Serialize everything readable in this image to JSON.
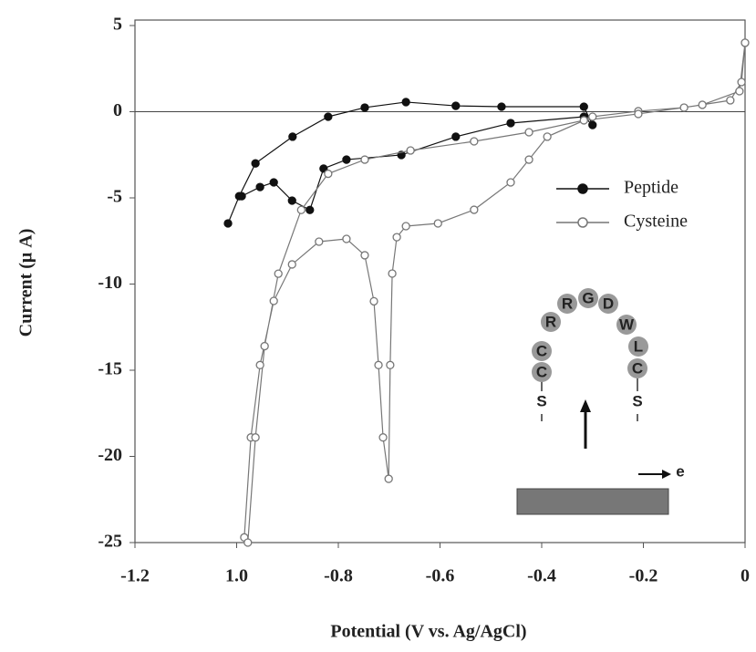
{
  "chart_data": {
    "type": "line",
    "x_label": "Potential (V vs. Ag/AgCl)",
    "y_label": "Current (μ A)",
    "xlim": [
      -1.2,
      0
    ],
    "ylim": [
      -25,
      5
    ],
    "xticks": [
      -1.2,
      {
        "value": -1.0,
        "label": "1.0"
      },
      -0.8,
      -0.6,
      -0.4,
      -0.2,
      0
    ],
    "yticks": [
      5,
      0,
      -5,
      -10,
      -15,
      -20,
      -25
    ],
    "zero_line": true,
    "legend_position": "right",
    "series": [
      {
        "name": "Peptide",
        "color": "#111111",
        "marker": "filled",
        "x": [
          -1.017,
          -0.995,
          -0.963,
          -0.89,
          -0.82,
          -0.748,
          -0.667,
          -0.569,
          -0.479,
          -0.317,
          -0.3,
          -0.317,
          -0.461,
          -0.569,
          -0.676,
          -0.784,
          -0.829,
          -0.856,
          -0.891,
          -0.927,
          -0.954,
          -0.99
        ],
        "values": [
          -6.48,
          -4.9,
          -3.0,
          -1.45,
          -0.29,
          0.24,
          0.56,
          0.34,
          0.29,
          0.29,
          -0.77,
          -0.29,
          -0.66,
          -1.45,
          -2.51,
          -2.78,
          -3.3,
          -5.7,
          -5.16,
          -4.1,
          -4.37,
          -4.9
        ]
      },
      {
        "name": "Cysteine",
        "color": "#777777",
        "marker": "open",
        "x": [
          0,
          -0.007,
          -0.029,
          -0.12,
          -0.21,
          -0.3,
          -0.389,
          -0.425,
          -0.461,
          -0.533,
          -0.604,
          -0.667,
          -0.685,
          -0.694,
          -0.698,
          -0.701,
          -0.712,
          -0.721,
          -0.73,
          -0.748,
          -0.784,
          -0.838,
          -0.891,
          -0.927,
          -0.954,
          -0.972,
          -0.985,
          -0.978,
          -0.963,
          -0.945,
          -0.918,
          -0.873,
          -0.82,
          -0.748,
          -0.658,
          -0.533,
          -0.425,
          -0.317,
          -0.21,
          -0.084,
          -0.011,
          0
        ],
        "values": [
          4.0,
          1.72,
          0.66,
          0.24,
          0.03,
          -0.29,
          -1.45,
          -2.78,
          -4.1,
          -5.69,
          -6.48,
          -6.64,
          -7.28,
          -9.39,
          -14.7,
          -21.3,
          -18.9,
          -14.7,
          -11.0,
          -8.33,
          -7.38,
          -7.54,
          -8.86,
          -10.98,
          -14.7,
          -18.9,
          -24.7,
          -25,
          -18.9,
          -13.6,
          -9.4,
          -5.7,
          -3.6,
          -2.78,
          -2.25,
          -1.72,
          -1.19,
          -0.5,
          -0.13,
          0.4,
          1.19,
          4.0
        ]
      }
    ],
    "annotations": [
      "S",
      "C",
      "C",
      "R",
      "R",
      "G",
      "D",
      "W",
      "L",
      "C",
      "S",
      "e"
    ]
  }
}
